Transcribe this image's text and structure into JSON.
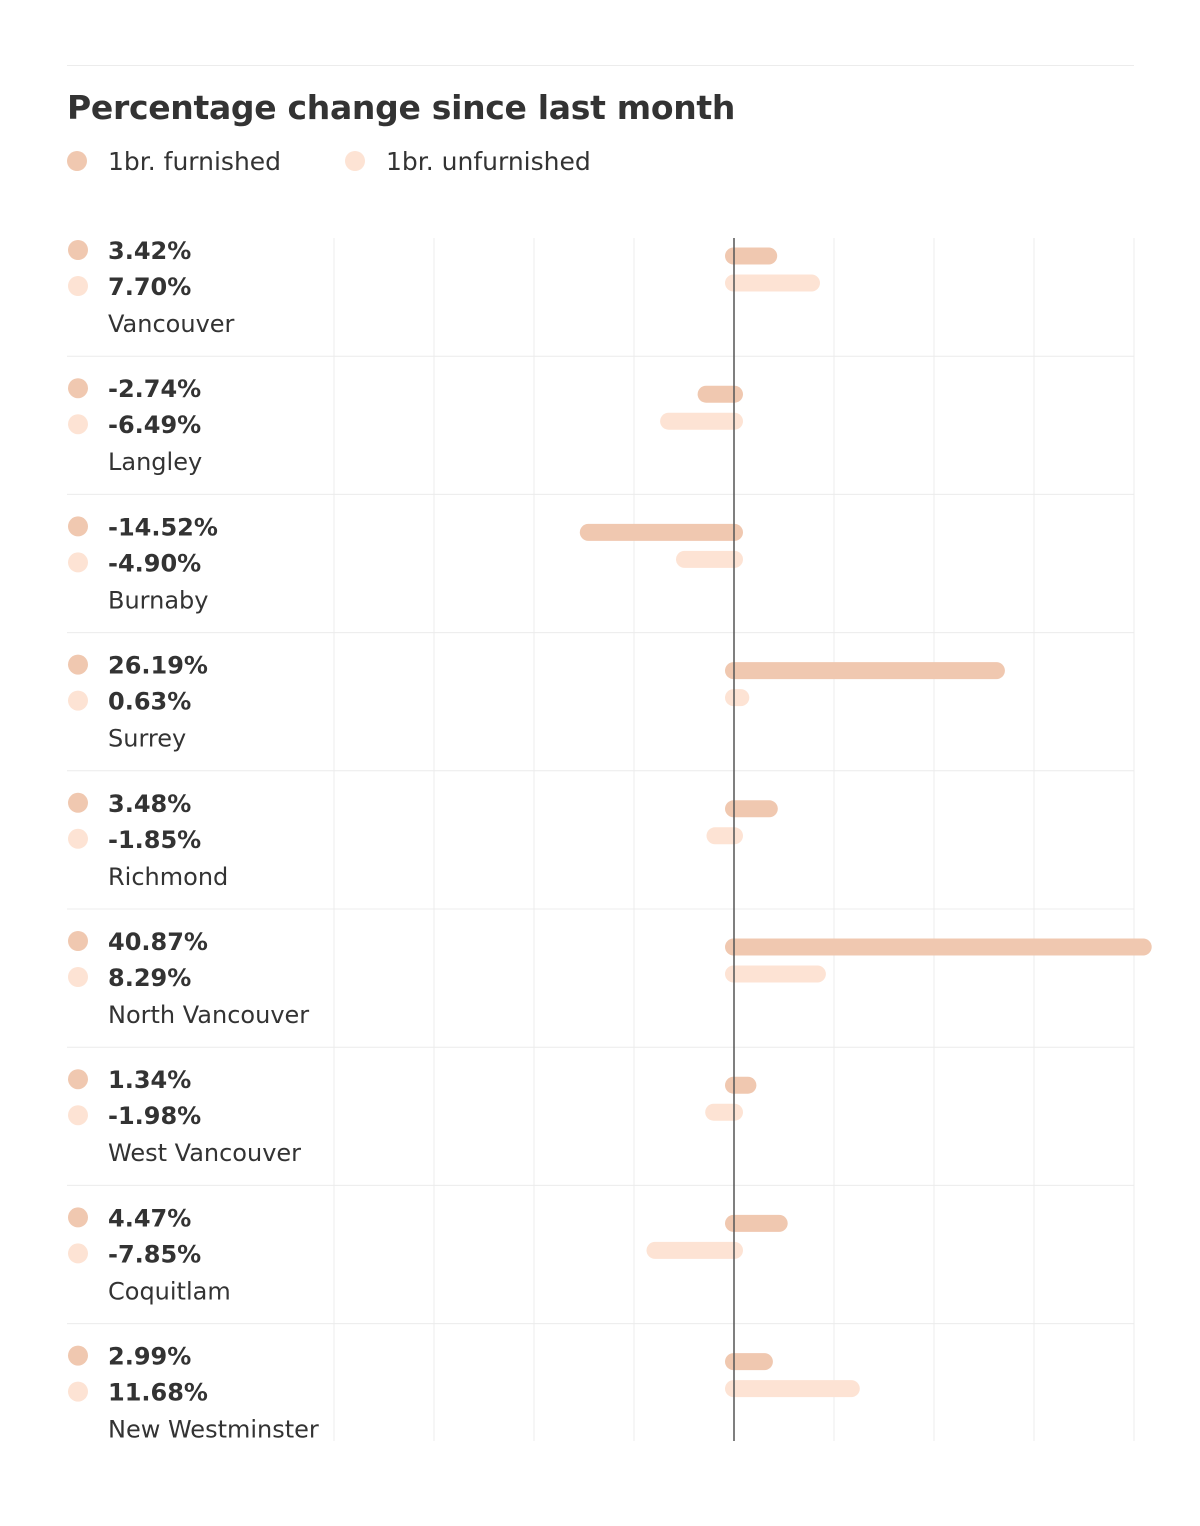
{
  "colors": {
    "furnished": "#f0c8b0",
    "unfurnished": "#fde3d4",
    "grid": "#ececec",
    "axis": "#555555",
    "text": "#333333"
  },
  "chart_data": {
    "type": "bar",
    "title": "Percentage change since last month",
    "orientation": "horizontal",
    "xlim": [
      -40,
      40
    ],
    "grid": true,
    "legend_placement": "top-left",
    "categories": [
      "Vancouver",
      "Langley",
      "Burnaby",
      "Surrey",
      "Richmond",
      "North Vancouver",
      "West Vancouver",
      "Coquitlam",
      "New Westminster"
    ],
    "series": [
      {
        "name": "1br. furnished",
        "color": "#f0c8b0",
        "values": [
          3.42,
          -2.74,
          -14.52,
          26.19,
          3.48,
          40.87,
          1.34,
          4.47,
          2.99
        ],
        "labels": [
          "3.42%",
          "-2.74%",
          "-14.52%",
          "26.19%",
          "3.48%",
          "40.87%",
          "1.34%",
          "4.47%",
          "2.99%"
        ]
      },
      {
        "name": "1br. unfurnished",
        "color": "#fde3d4",
        "values": [
          7.7,
          -6.49,
          -4.9,
          0.63,
          -1.85,
          8.29,
          -1.98,
          -7.85,
          11.68
        ],
        "labels": [
          "7.70%",
          "-6.49%",
          "-4.90%",
          "0.63%",
          "-1.85%",
          "8.29%",
          "-1.98%",
          "-7.85%",
          "11.68%"
        ]
      }
    ]
  }
}
